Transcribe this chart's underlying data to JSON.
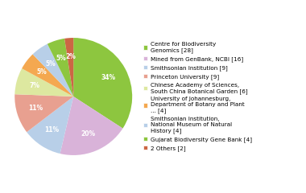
{
  "labels": [
    "Centre for Biodiversity\nGenomics [28]",
    "Mined from GenBank, NCBI [16]",
    "Smithsonian Institution [9]",
    "Princeton University [9]",
    "Chinese Academy of Sciences,\nSouth China Botanical Garden [6]",
    "University of Johannesburg,\nDepartment of Botany and Plant\n... [4]",
    "Smithsonian Institution,\nNational Museum of Natural\nHistory [4]",
    "Gujarat Biodiversity Gene Bank [4]",
    "2 Others [2]"
  ],
  "values": [
    28,
    16,
    9,
    9,
    6,
    4,
    4,
    4,
    2
  ],
  "colors": [
    "#8dc63f",
    "#d9b3d9",
    "#b8cfe8",
    "#e8a090",
    "#dde8a0",
    "#f4a850",
    "#b8cfe8",
    "#8dc63f",
    "#cc6644"
  ],
  "legend_labels": [
    "Centre for Biodiversity\nGenomics [28]",
    "Mined from GenBank, NCBI [16]",
    "Smithsonian Institution [9]",
    "Princeton University [9]",
    "Chinese Academy of Sciences,\nSouth China Botanical Garden [6]",
    "University of Johannesburg,\nDepartment of Botany and Plant\n... [4]",
    "Smithsonian Institution,\nNational Museum of Natural\nHistory [4]",
    "Gujarat Biodiversity Gene Bank [4]",
    "2 Others [2]"
  ],
  "legend_colors": [
    "#8dc63f",
    "#d9b3d9",
    "#b8cfe8",
    "#e8a090",
    "#dde8a0",
    "#f4a850",
    "#b8cfe8",
    "#8dc63f",
    "#cc6644"
  ],
  "startangle": 90,
  "figsize": [
    3.8,
    2.4
  ],
  "dpi": 100
}
